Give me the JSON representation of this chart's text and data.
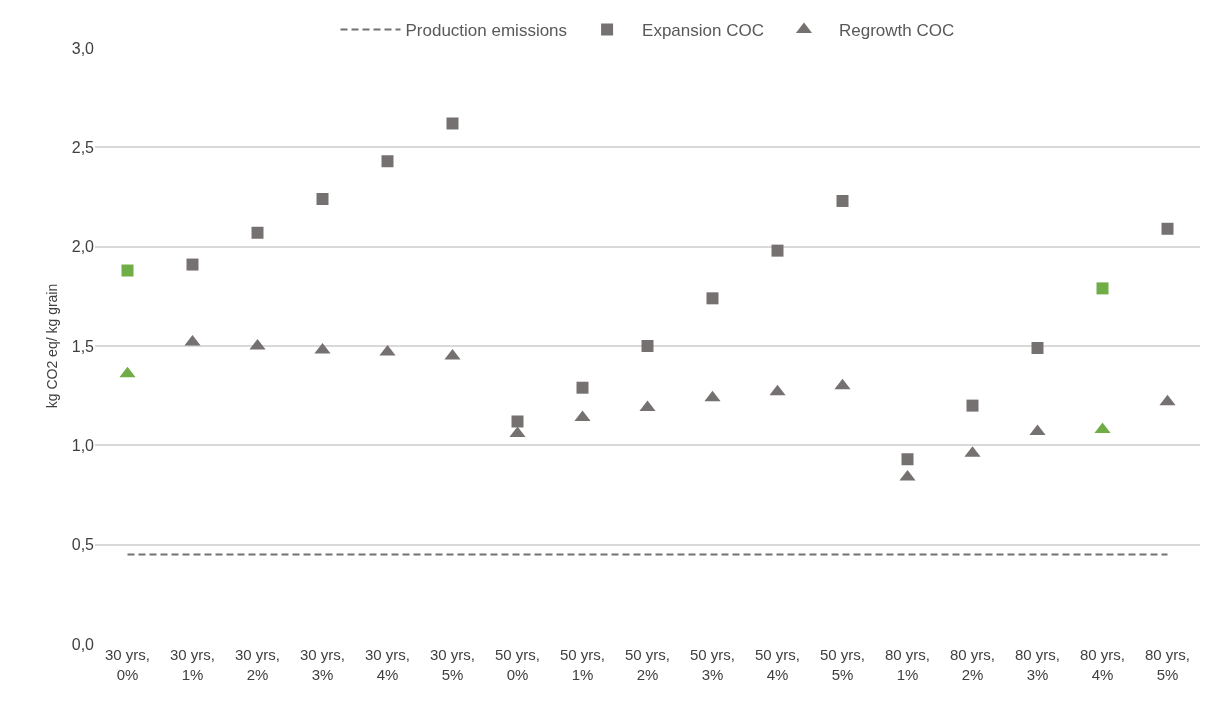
{
  "chart_data": {
    "type": "scatter",
    "ylabel": "kg CO2 eq/ kg grain",
    "categories": [
      "30 yrs, 0%",
      "30 yrs, 1%",
      "30 yrs, 2%",
      "30 yrs, 3%",
      "30 yrs, 4%",
      "30 yrs, 5%",
      "50 yrs, 0%",
      "50 yrs, 1%",
      "50 yrs, 2%",
      "50 yrs, 3%",
      "50 yrs, 4%",
      "50 yrs, 5%",
      "80 yrs, 1%",
      "80 yrs, 2%",
      "80 yrs, 3%",
      "80 yrs, 4%",
      "80 yrs, 5%"
    ],
    "series": [
      {
        "name": "Production emissions",
        "type": "line",
        "color": "#767171",
        "line_style": "dashed",
        "marker": "none",
        "values": [
          0.45,
          0.45,
          0.45,
          0.45,
          0.45,
          0.45,
          0.45,
          0.45,
          0.45,
          0.45,
          0.45,
          0.45,
          0.45,
          0.45,
          0.45,
          0.45,
          0.45
        ]
      },
      {
        "name": "Expansion COC",
        "color": "#767171",
        "marker": "square",
        "colors": [
          "#70ad47",
          "#767171",
          "#767171",
          "#767171",
          "#767171",
          "#767171",
          "#767171",
          "#767171",
          "#767171",
          "#767171",
          "#767171",
          "#767171",
          "#767171",
          "#767171",
          "#767171",
          "#70ad47",
          "#767171"
        ],
        "values": [
          1.88,
          1.91,
          2.07,
          2.24,
          2.43,
          2.62,
          1.12,
          1.29,
          1.5,
          1.74,
          1.98,
          2.23,
          0.93,
          1.2,
          1.49,
          1.79,
          2.09
        ]
      },
      {
        "name": "Regrowth COC",
        "color": "#767171",
        "marker": "triangle",
        "colors": [
          "#70ad47",
          "#767171",
          "#767171",
          "#767171",
          "#767171",
          "#767171",
          "#767171",
          "#767171",
          "#767171",
          "#767171",
          "#767171",
          "#767171",
          "#767171",
          "#767171",
          "#767171",
          "#70ad47",
          "#767171"
        ],
        "values": [
          1.36,
          1.52,
          1.5,
          1.48,
          1.47,
          1.45,
          1.06,
          1.14,
          1.19,
          1.24,
          1.27,
          1.3,
          0.84,
          0.96,
          1.07,
          1.08,
          1.22
        ]
      }
    ],
    "ylim": [
      0,
      3
    ],
    "yticks": [
      {
        "value": 0,
        "label": "0,0"
      },
      {
        "value": 0.5,
        "label": "0,5"
      },
      {
        "value": 1,
        "label": "1,0"
      },
      {
        "value": 1.5,
        "label": "1,5"
      },
      {
        "value": 2,
        "label": "2,0"
      },
      {
        "value": 2.5,
        "label": "2,5"
      },
      {
        "value": 3,
        "label": "3,0"
      }
    ],
    "grid": "y",
    "legend": "top"
  }
}
